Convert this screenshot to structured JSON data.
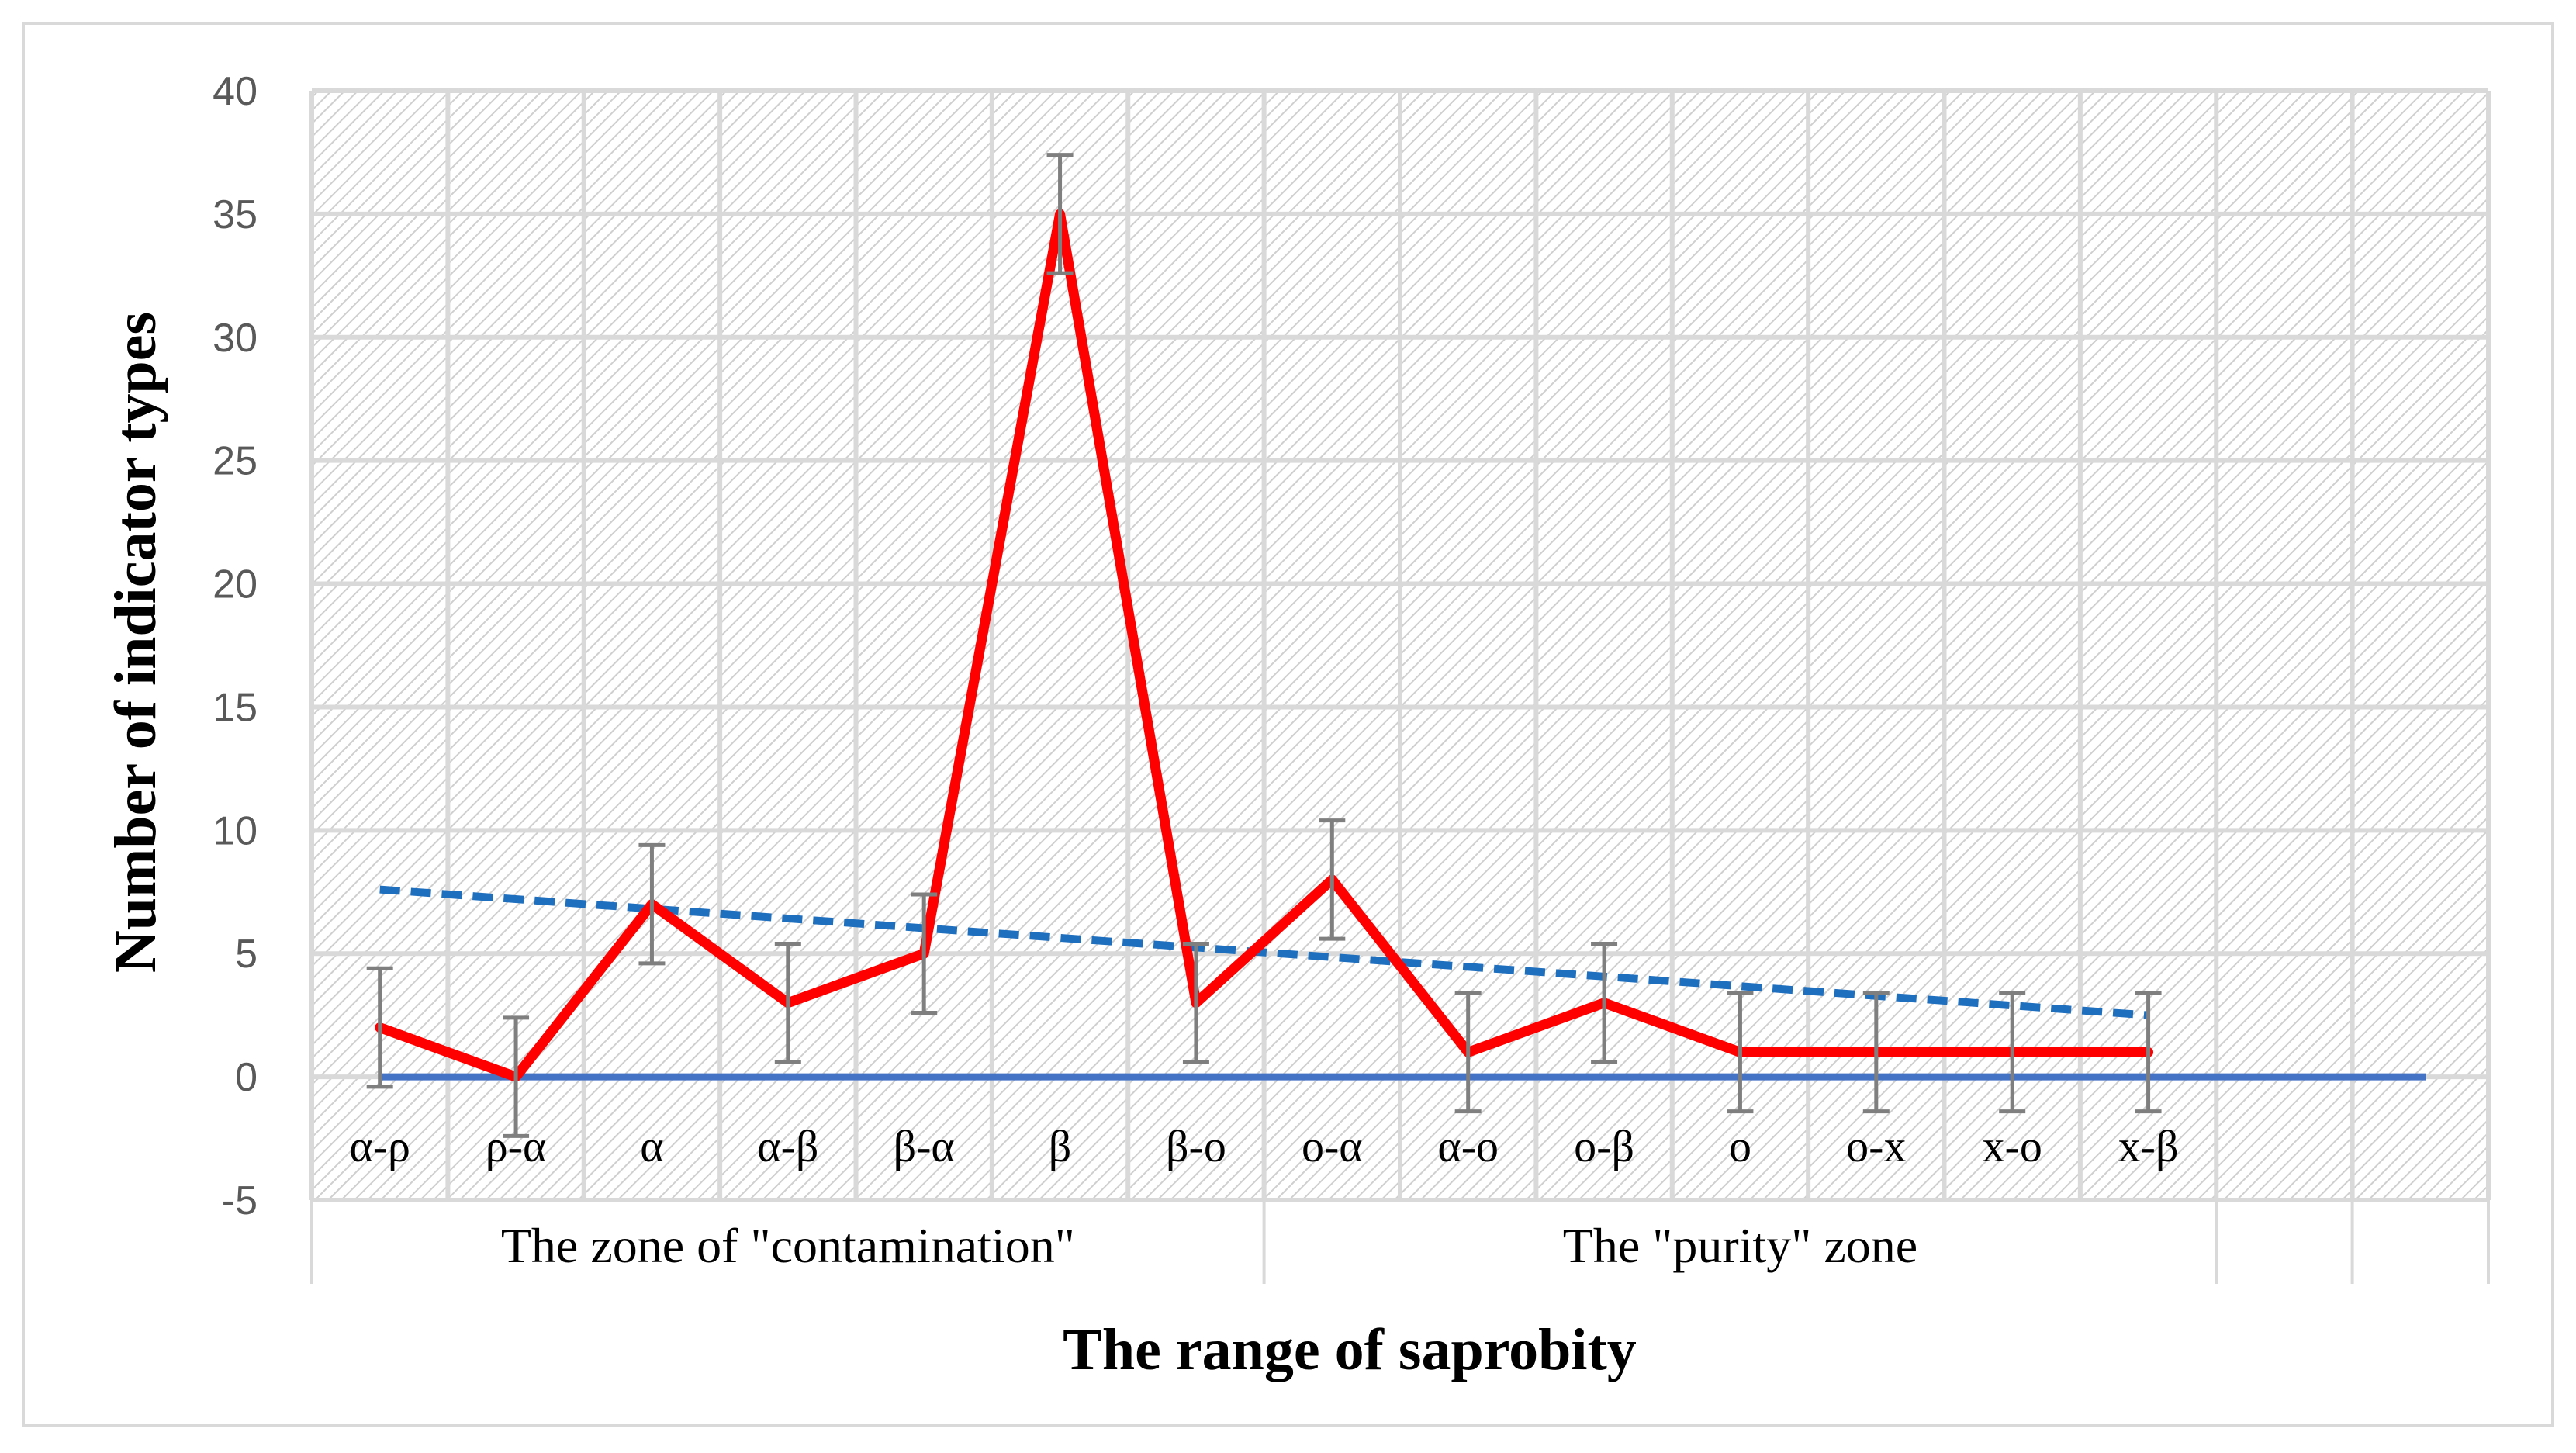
{
  "chart_data": {
    "type": "line",
    "title": "",
    "xlabel": "The range of saprobity",
    "ylabel": "Number of indicator types",
    "ylim": [
      -5,
      40
    ],
    "yticks": [
      40,
      35,
      30,
      25,
      20,
      15,
      10,
      5,
      0,
      -5
    ],
    "categories": [
      "α-ρ",
      "ρ-α",
      "α",
      "α-β",
      "β-α",
      "β",
      "β-o",
      "o-α",
      "α-o",
      "o-β",
      "o",
      "o-x",
      "x-o",
      "x-β"
    ],
    "groups": [
      {
        "label": "The zone of \"contamination\"",
        "span": [
          0,
          6
        ]
      },
      {
        "label": "The \"purity\" zone",
        "span": [
          7,
          13
        ]
      }
    ],
    "series": [
      {
        "name": "Number of indicator types",
        "values": [
          2,
          0,
          7,
          3,
          5,
          35,
          3,
          8,
          1,
          3,
          1,
          1,
          1,
          1
        ],
        "error": 2.4,
        "color": "#ff0000"
      },
      {
        "name": "Linear trend",
        "start": 7.6,
        "end": 2.5,
        "color": "#1f6fbf"
      },
      {
        "name": "Zero line",
        "value": 0,
        "color": "#4472c4"
      }
    ],
    "grid": true,
    "legend": "none"
  }
}
